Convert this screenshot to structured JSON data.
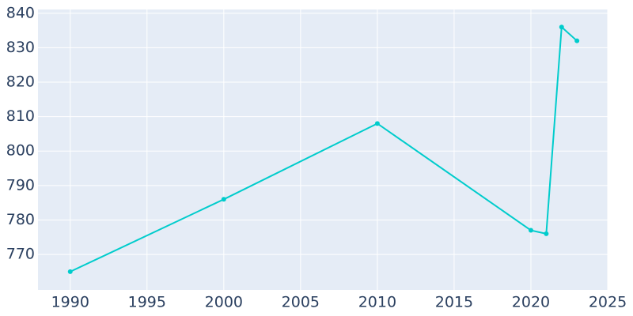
{
  "chart_data": {
    "type": "line",
    "x": [
      1990,
      2000,
      2010,
      2020,
      2021,
      2022,
      2023
    ],
    "values": [
      765,
      786,
      808,
      777,
      776,
      836,
      832
    ],
    "color": "#00cccc",
    "xlim": [
      1987.9,
      2025
    ],
    "xticks": [
      1990,
      1995,
      2000,
      2005,
      2010,
      2015,
      2020,
      2025
    ],
    "ylim": [
      759.7,
      841.1
    ],
    "yticks": [
      770,
      780,
      790,
      800,
      810,
      820,
      830,
      840
    ],
    "grid": true
  }
}
